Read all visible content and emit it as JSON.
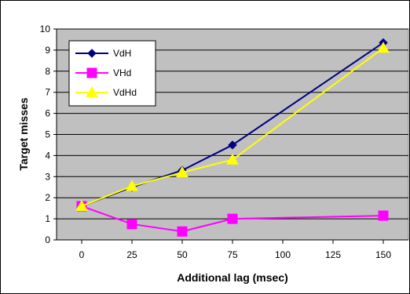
{
  "chart_data": {
    "type": "line",
    "xlabel": "Additional lag (msec)",
    "ylabel": "Target misses",
    "x": [
      0,
      25,
      50,
      75,
      150
    ],
    "x_ticks": [
      0,
      25,
      50,
      75,
      100,
      125,
      150
    ],
    "xlim": [
      -12.5,
      162.5
    ],
    "ylim": [
      0,
      10
    ],
    "y_ticks": [
      0,
      1,
      2,
      3,
      4,
      5,
      6,
      7,
      8,
      9,
      10
    ],
    "grid": "horizontal",
    "legend_position": "top-left",
    "series": [
      {
        "name": "VdH",
        "color": "#000080",
        "marker": "diamond",
        "values": [
          1.6,
          2.5,
          3.3,
          4.5,
          9.35
        ]
      },
      {
        "name": "VHd",
        "color": "#FF00FF",
        "marker": "square",
        "values": [
          1.6,
          0.75,
          0.4,
          1.0,
          1.15
        ]
      },
      {
        "name": "VdHd",
        "color": "#FFFF00",
        "marker": "triangle",
        "values": [
          1.6,
          2.55,
          3.2,
          3.8,
          9.1
        ]
      }
    ],
    "colors": {
      "plot_background": "#C0C0C0",
      "gridline": "#000000",
      "chart_border": "#000000"
    }
  }
}
